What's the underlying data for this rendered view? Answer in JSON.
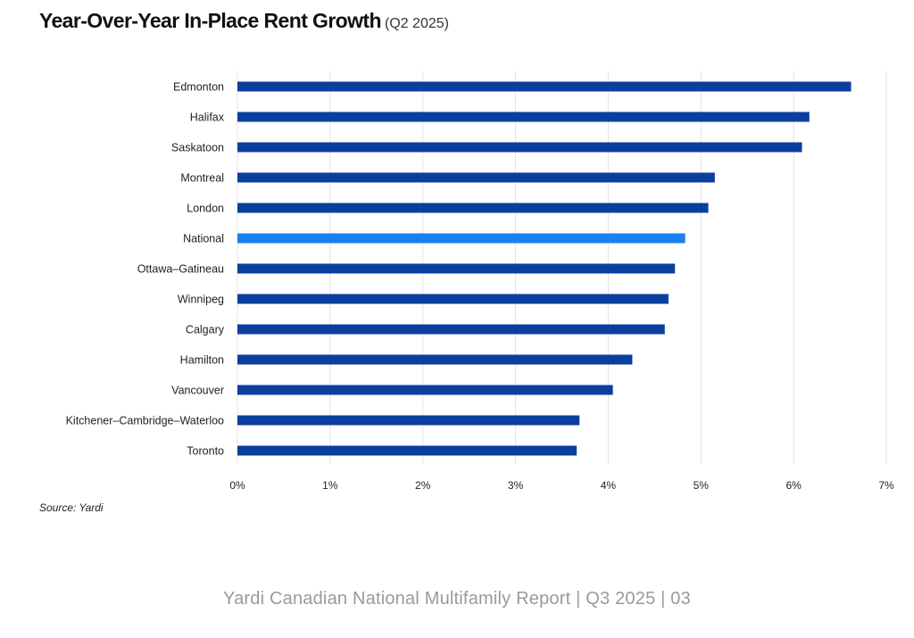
{
  "title": {
    "main": "Year-Over-Year In-Place Rent Growth",
    "sub": "(Q2 2025)"
  },
  "chart_data": {
    "type": "bar",
    "orientation": "horizontal",
    "categories": [
      "Edmonton",
      "Halifax",
      "Saskatoon",
      "Montreal",
      "London",
      "National",
      "Ottawa–Gatineau",
      "Winnipeg",
      "Calgary",
      "Hamilton",
      "Vancouver",
      "Kitchener–Cambridge–Waterloo",
      "Toronto"
    ],
    "values": [
      6.62,
      6.17,
      6.09,
      5.15,
      5.08,
      4.83,
      4.72,
      4.65,
      4.61,
      4.26,
      4.05,
      3.69,
      3.66
    ],
    "highlight": "National",
    "colors": {
      "bar": "#0a3fa0",
      "highlight": "#1a80f2",
      "grid": "#e3e3e3"
    },
    "xlim": [
      0,
      7
    ],
    "xticks": [
      0,
      1,
      2,
      3,
      4,
      5,
      6,
      7
    ],
    "tick_labels": [
      "0%",
      "1%",
      "2%",
      "3%",
      "4%",
      "5%",
      "6%",
      "7%"
    ],
    "grid": true,
    "legend": "none"
  },
  "source": "Source: Yardi",
  "footer": "Yardi Canadian National Multifamily Report  |  Q3 2025  |  03"
}
